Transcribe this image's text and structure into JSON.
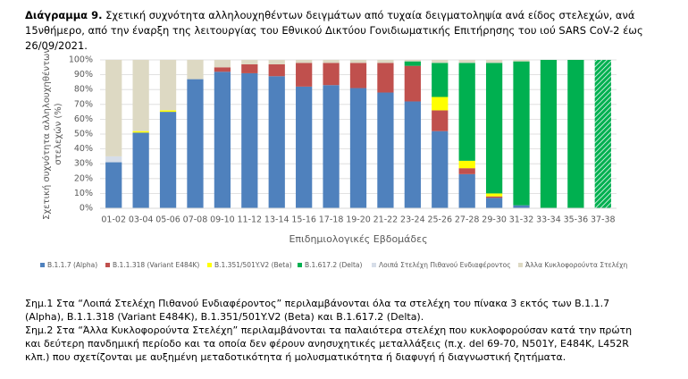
{
  "chart_data": {
    "type": "stacked_bar",
    "title_label": "Διάγραμμα 9.",
    "title": "Σχετική συχνότητα αλληλουχηθέντων δειγμάτων από τυχαία δειγματοληψία ανά είδος στελεχών, ανά 15νθήμερο, από την έναρξη της λειτουργίας του Εθνικού Δικτύου Γονιδιωματικής Επιτήρησης του ιού SARS CoV-2 έως 26/09/2021.",
    "ylabel": [
      "Σχετική συχνότητα αλληλουχηθέντων",
      "στελεχών (%)"
    ],
    "xlabel": "Επιδημιολογικές Εβδομάδες",
    "categories": [
      "01-02",
      "03-04",
      "05-06",
      "07-08",
      "09-10",
      "11-12",
      "13-14",
      "15-16",
      "17-18",
      "19-20",
      "21-22",
      "23-24",
      "25-26",
      "27-28",
      "29-30",
      "31-32",
      "33-34",
      "35-36",
      "37-38"
    ],
    "series": [
      {
        "name": "B.1.1.7 (Alpha)",
        "color": "#4f81bd",
        "values": [
          31,
          51,
          65,
          87,
          92,
          91,
          89,
          82,
          83,
          81,
          78,
          72,
          52,
          23,
          7,
          2,
          0,
          0,
          0
        ]
      },
      {
        "name": "B.1.1.318 (Variant E484K)",
        "color": "#c0504d",
        "values": [
          0,
          0,
          0,
          0,
          3,
          6,
          8,
          16,
          15,
          17,
          20,
          24,
          14,
          4,
          1,
          0,
          0,
          0,
          0
        ]
      },
      {
        "name": "B.1.351/501Y.V2 (Beta)",
        "color": "#ffff00",
        "values": [
          0,
          1,
          1,
          0,
          0,
          0,
          0,
          0,
          0,
          0,
          0,
          0,
          9,
          5,
          2,
          0,
          0,
          0,
          0
        ]
      },
      {
        "name": "B.1.617.2 (Delta)",
        "color": "#00b050",
        "values": [
          0,
          0,
          0,
          0,
          0,
          0,
          0,
          0,
          0,
          0,
          0,
          3,
          23,
          66,
          88,
          97,
          100,
          100,
          100
        ]
      },
      {
        "name": "Λοιπά Στελέχη Πιθανού Ενδιαφέροντος",
        "color": "#d6dde8",
        "values": [
          4,
          0,
          0,
          0,
          0,
          0,
          0,
          0,
          0,
          0,
          0,
          0,
          0,
          0,
          0,
          0,
          0,
          0,
          0
        ]
      },
      {
        "name": "Άλλα Κυκλοφορούντα Στελέχη",
        "color": "#ddd9c3",
        "values": [
          65,
          48,
          34,
          13,
          5,
          3,
          3,
          2,
          2,
          2,
          2,
          1,
          2,
          2,
          2,
          1,
          0,
          0,
          0
        ]
      }
    ],
    "ylim": [
      0,
      100
    ],
    "yticks": [
      {
        "value": 0,
        "label": "0%"
      },
      {
        "value": 10,
        "label": "10%"
      },
      {
        "value": 20,
        "label": "20%"
      },
      {
        "value": 30,
        "label": "30%"
      },
      {
        "value": 40,
        "label": "40%"
      },
      {
        "value": 50,
        "label": "50%"
      },
      {
        "value": 60,
        "label": "60%"
      },
      {
        "value": 70,
        "label": "70%"
      },
      {
        "value": 80,
        "label": "80%"
      },
      {
        "value": 90,
        "label": "90%"
      },
      {
        "value": 100,
        "label": "100%"
      }
    ],
    "grid": true,
    "last_bar_hatched": true,
    "legend": "bottom"
  },
  "notes": [
    "Σημ.1 Στα “Λοιπά Στελέχη Πιθανού Ενδιαφέροντος” περιλαμβάνονται όλα τα στελέχη του πίνακα 3 εκτός των B.1.1.7 (Alpha), B.1.1.318 (Variant E484K), B.1.351/501Y.V2 (Beta) και B.1.617.2 (Delta).",
    "Σημ.2 Στα “Άλλα Κυκλοφορούντα Στελέχη” περιλαμβάνονται τα παλαιότερα στελέχη που κυκλοφορούσαν κατά την πρώτη και δεύτερη πανδημική περίοδο και τα οποία δεν φέρουν ανησυχητικές μεταλλάξεις (π.χ. del 69-70, N501Y, E484K, L452R κλπ.) που σχετίζονται με αυξημένη μεταδοτικότητα ή μολυσματικότητα ή διαφυγή ή διαγνωστική ζητήματα."
  ]
}
